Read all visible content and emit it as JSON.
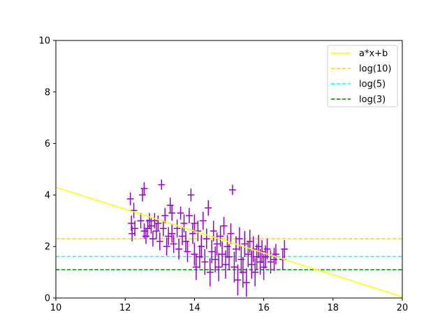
{
  "chart_data": {
    "type": "scatter",
    "title": "",
    "xlabel": "",
    "ylabel": "",
    "xlim": [
      10,
      20
    ],
    "ylim": [
      0,
      10
    ],
    "xticks": [
      "10",
      "12",
      "14",
      "16",
      "18",
      "20"
    ],
    "yticks": [
      "0",
      "2",
      "4",
      "6",
      "8",
      "10"
    ],
    "grid": false,
    "legend_position": "top-right",
    "lines": [
      {
        "name": "a*x+b",
        "kind": "line",
        "style": "solid",
        "color": "#ffff00",
        "x": [
          10,
          20
        ],
        "y": [
          4.3,
          0.05
        ]
      },
      {
        "name": "log(10)",
        "kind": "hline",
        "style": "dashed",
        "color": "#ffd700",
        "x": [
          10,
          20
        ],
        "y": [
          2.303,
          2.303
        ]
      },
      {
        "name": "log(5)",
        "kind": "hline",
        "style": "dashed",
        "color": "#00ffff",
        "x": [
          10,
          20
        ],
        "y": [
          1.609,
          1.609
        ]
      },
      {
        "name": "log(3)",
        "kind": "hline",
        "style": "dashed",
        "color": "#008000",
        "x": [
          10,
          20
        ],
        "y": [
          1.099,
          1.099
        ]
      }
    ],
    "scatter": {
      "color": "#9400d3",
      "x_err": 0.1,
      "points": [
        [
          12.15,
          3.85,
          0.25
        ],
        [
          12.18,
          2.9,
          0.3
        ],
        [
          12.2,
          2.5,
          0.3
        ],
        [
          12.25,
          3.4,
          0.3
        ],
        [
          12.28,
          2.7,
          0.3
        ],
        [
          12.45,
          3.0,
          0.3
        ],
        [
          12.5,
          4.0,
          0.25
        ],
        [
          12.55,
          4.25,
          0.25
        ],
        [
          12.55,
          2.6,
          0.3
        ],
        [
          12.6,
          2.4,
          0.3
        ],
        [
          12.65,
          2.7,
          0.35
        ],
        [
          12.7,
          3.0,
          0.3
        ],
        [
          12.75,
          2.8,
          0.3
        ],
        [
          12.8,
          2.3,
          0.3
        ],
        [
          12.85,
          3.0,
          0.3
        ],
        [
          12.9,
          2.6,
          0.3
        ],
        [
          12.95,
          2.9,
          0.3
        ],
        [
          13.0,
          2.2,
          0.35
        ],
        [
          13.05,
          4.4,
          0.2
        ],
        [
          13.1,
          2.7,
          0.3
        ],
        [
          13.15,
          3.2,
          0.3
        ],
        [
          13.2,
          2.0,
          0.35
        ],
        [
          13.25,
          2.4,
          0.35
        ],
        [
          13.3,
          3.6,
          0.3
        ],
        [
          13.35,
          2.5,
          0.35
        ],
        [
          13.35,
          3.3,
          0.3
        ],
        [
          13.4,
          2.1,
          0.35
        ],
        [
          13.5,
          2.7,
          0.35
        ],
        [
          13.55,
          1.9,
          0.4
        ],
        [
          13.6,
          3.3,
          0.25
        ],
        [
          13.65,
          2.4,
          0.35
        ],
        [
          13.7,
          2.9,
          0.35
        ],
        [
          13.75,
          2.2,
          0.4
        ],
        [
          13.8,
          1.8,
          0.4
        ],
        [
          13.85,
          3.2,
          0.3
        ],
        [
          13.9,
          4.0,
          0.25
        ],
        [
          13.95,
          2.5,
          0.4
        ],
        [
          14.0,
          1.7,
          0.45
        ],
        [
          14.0,
          2.9,
          0.35
        ],
        [
          14.05,
          1.2,
          0.5
        ],
        [
          14.1,
          2.6,
          0.4
        ],
        [
          14.15,
          1.6,
          0.45
        ],
        [
          14.2,
          2.0,
          0.45
        ],
        [
          14.25,
          3.0,
          0.35
        ],
        [
          14.3,
          1.4,
          0.5
        ],
        [
          14.35,
          2.3,
          0.4
        ],
        [
          14.4,
          3.5,
          0.3
        ],
        [
          14.45,
          1.0,
          0.55
        ],
        [
          14.5,
          1.8,
          0.45
        ],
        [
          14.55,
          2.6,
          0.4
        ],
        [
          14.6,
          1.5,
          0.5
        ],
        [
          14.65,
          2.1,
          0.45
        ],
        [
          14.7,
          1.2,
          0.55
        ],
        [
          14.75,
          2.4,
          0.4
        ],
        [
          14.8,
          1.7,
          0.5
        ],
        [
          14.85,
          2.8,
          0.35
        ],
        [
          14.9,
          1.3,
          0.55
        ],
        [
          14.95,
          2.0,
          0.45
        ],
        [
          15.0,
          1.6,
          0.5
        ],
        [
          15.05,
          2.5,
          0.4
        ],
        [
          15.1,
          4.2,
          0.2
        ],
        [
          15.15,
          1.2,
          0.6
        ],
        [
          15.2,
          1.9,
          0.5
        ],
        [
          15.25,
          0.7,
          0.6
        ],
        [
          15.3,
          2.3,
          0.45
        ],
        [
          15.35,
          1.5,
          0.55
        ],
        [
          15.4,
          1.0,
          0.6
        ],
        [
          15.45,
          2.1,
          0.5
        ],
        [
          15.5,
          0.6,
          0.55
        ],
        [
          15.55,
          1.7,
          0.5
        ],
        [
          15.6,
          2.2,
          0.45
        ],
        [
          15.65,
          1.3,
          0.55
        ],
        [
          15.7,
          1.9,
          0.5
        ],
        [
          15.75,
          1.0,
          0.55
        ],
        [
          15.8,
          1.6,
          0.5
        ],
        [
          15.85,
          2.0,
          0.45
        ],
        [
          15.9,
          1.4,
          0.5
        ],
        [
          15.95,
          1.8,
          0.45
        ],
        [
          16.0,
          1.2,
          0.5
        ],
        [
          16.05,
          1.6,
          0.45
        ],
        [
          16.1,
          1.9,
          0.4
        ],
        [
          16.2,
          1.4,
          0.45
        ],
        [
          16.3,
          1.5,
          0.45
        ],
        [
          16.35,
          1.7,
          0.4
        ],
        [
          16.55,
          1.5,
          0.4
        ],
        [
          16.6,
          1.9,
          0.35
        ]
      ]
    }
  }
}
